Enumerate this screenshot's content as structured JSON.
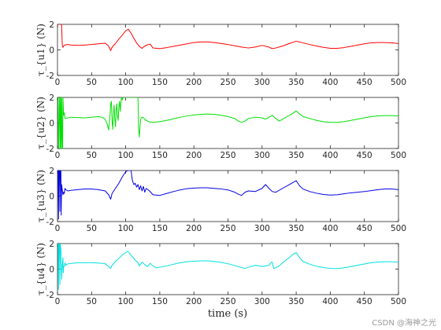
{
  "watermark": "CSDN @海神之光",
  "chart_data": [
    {
      "type": "line",
      "ylabel": "τ_{u1} (N)",
      "xlabel": "",
      "xlim": [
        0,
        500
      ],
      "ylim": [
        -2,
        2
      ],
      "xticks": [
        0,
        50,
        100,
        150,
        200,
        250,
        300,
        350,
        400,
        450,
        500
      ],
      "yticks": [
        -2,
        0,
        2
      ],
      "color": "#ff0000",
      "series": [
        {
          "x": [
            0,
            1,
            2,
            3,
            4,
            5,
            6,
            7,
            8,
            9,
            10,
            12,
            15,
            20,
            30,
            40,
            50,
            60,
            70,
            75,
            78,
            80,
            85,
            90,
            95,
            100,
            104,
            108,
            112,
            116,
            120,
            124,
            128,
            132,
            136,
            140,
            150,
            160,
            170,
            180,
            190,
            200,
            210,
            220,
            230,
            240,
            250,
            260,
            270,
            280,
            290,
            300,
            310,
            315,
            320,
            330,
            340,
            350,
            360,
            370,
            380,
            390,
            400,
            410,
            420,
            430,
            440,
            450,
            460,
            470,
            480,
            490,
            500
          ],
          "y": [
            2,
            2,
            2,
            2,
            2,
            2,
            2,
            0.4,
            0.2,
            0.3,
            0.35,
            0.4,
            0.42,
            0.38,
            0.35,
            0.38,
            0.42,
            0.48,
            0.52,
            0.3,
            -0.05,
            0.2,
            0.5,
            0.85,
            1.15,
            1.5,
            1.62,
            1.3,
            0.9,
            0.55,
            0.28,
            0.12,
            0.3,
            0.4,
            0.45,
            0.15,
            0.1,
            0.18,
            0.28,
            0.38,
            0.48,
            0.58,
            0.62,
            0.62,
            0.58,
            0.5,
            0.42,
            0.32,
            0.22,
            0.15,
            0.22,
            0.35,
            0.22,
            0.1,
            0.15,
            0.3,
            0.5,
            0.68,
            0.55,
            0.42,
            0.3,
            0.2,
            0.12,
            0.12,
            0.18,
            0.28,
            0.38,
            0.48,
            0.55,
            0.58,
            0.58,
            0.55,
            0.5
          ]
        }
      ]
    },
    {
      "type": "line",
      "ylabel": "τ_{u2} (N)",
      "xlabel": "",
      "xlim": [
        0,
        500
      ],
      "ylim": [
        -2,
        2
      ],
      "xticks": [
        0,
        50,
        100,
        150,
        200,
        250,
        300,
        350,
        400,
        450,
        500
      ],
      "yticks": [
        -2,
        0,
        2
      ],
      "color": "#00e000",
      "series": [
        {
          "x": [
            0,
            1,
            1.5,
            2,
            3,
            3.5,
            4,
            5,
            5.5,
            6,
            7,
            7.5,
            8,
            9,
            10,
            11,
            12,
            15,
            20,
            30,
            40,
            50,
            60,
            65,
            70,
            73,
            75,
            77,
            78,
            79,
            80,
            81,
            82,
            83,
            84,
            85,
            86,
            87,
            88,
            89,
            90,
            91,
            92,
            93,
            94,
            95,
            96,
            97,
            98,
            100,
            105,
            110,
            115,
            118,
            119,
            120,
            121,
            122,
            124,
            126,
            130,
            135,
            140,
            150,
            160,
            170,
            180,
            190,
            200,
            210,
            220,
            230,
            240,
            250,
            260,
            265,
            270,
            275,
            280,
            290,
            300,
            305,
            310,
            315,
            320,
            325,
            330,
            340,
            345,
            350,
            355,
            360,
            370,
            380,
            390,
            400,
            410,
            420,
            430,
            440,
            450,
            460,
            470,
            480,
            490,
            500
          ],
          "y": [
            2,
            2,
            -2,
            -2,
            2,
            2,
            -2,
            2,
            -2,
            2,
            -2,
            -2,
            2,
            0.6,
            0.8,
            0.4,
            0.35,
            0.4,
            0.45,
            0.42,
            0.4,
            0.45,
            0.5,
            0.45,
            0.3,
            -0.1,
            -0.55,
            0.6,
            1.5,
            1.7,
            0.2,
            -0.5,
            0.8,
            1.4,
            0.4,
            -0.3,
            1.0,
            1.5,
            0.5,
            0.2,
            1.3,
            1.7,
            0.9,
            1.6,
            2,
            1.8,
            2,
            2,
            2,
            2,
            2,
            2,
            2,
            2,
            -0.5,
            -1.1,
            -0.3,
            0.3,
            0.45,
            0.4,
            0.2,
            0.08,
            0.05,
            0.1,
            0.2,
            0.32,
            0.45,
            0.55,
            0.62,
            0.68,
            0.7,
            0.68,
            0.6,
            0.5,
            0.35,
            0.15,
            0.05,
            0.15,
            0.35,
            0.45,
            0.4,
            0.3,
            0.45,
            0.6,
            0.35,
            0.15,
            0.3,
            0.6,
            0.75,
            0.95,
            0.7,
            0.5,
            0.35,
            0.2,
            0.1,
            0.05,
            0.05,
            0.1,
            0.2,
            0.3,
            0.4,
            0.5,
            0.55,
            0.58,
            0.58,
            0.55
          ]
        }
      ]
    },
    {
      "type": "line",
      "ylabel": "τ_{u3} (N)",
      "xlabel": "",
      "xlim": [
        0,
        500
      ],
      "ylim": [
        -2,
        2
      ],
      "xticks": [
        0,
        50,
        100,
        150,
        200,
        250,
        300,
        350,
        400,
        450,
        500
      ],
      "yticks": [
        -2,
        0,
        2
      ],
      "color": "#0000e0",
      "series": [
        {
          "x": [
            0,
            1,
            1.5,
            2,
            3,
            3.5,
            4,
            5,
            5.5,
            6,
            7,
            8,
            9,
            10,
            11,
            12,
            15,
            20,
            30,
            40,
            50,
            60,
            70,
            75,
            78,
            80,
            85,
            90,
            95,
            100,
            103,
            106,
            108,
            109,
            110,
            112,
            114,
            116,
            118,
            120,
            122,
            124,
            126,
            128,
            130,
            135,
            140,
            150,
            160,
            170,
            180,
            190,
            200,
            210,
            220,
            230,
            240,
            250,
            260,
            265,
            270,
            275,
            280,
            290,
            300,
            305,
            310,
            315,
            320,
            330,
            340,
            345,
            350,
            355,
            360,
            370,
            380,
            390,
            400,
            410,
            420,
            430,
            440,
            450,
            460,
            470,
            480,
            490,
            500
          ],
          "y": [
            2,
            2,
            -1.8,
            2,
            2,
            -1.2,
            2,
            2,
            -1.5,
            0.9,
            0.5,
            0.1,
            0.3,
            0.2,
            0.6,
            0.5,
            0.4,
            0.45,
            0.5,
            0.55,
            0.55,
            0.5,
            0.4,
            0.1,
            -0.25,
            0.2,
            0.6,
            1.0,
            1.5,
            1.9,
            2,
            2,
            2,
            1.5,
            1.2,
            0.9,
            1.0,
            0.7,
            0.9,
            0.5,
            0.8,
            0.4,
            0.75,
            0.3,
            0.6,
            0.4,
            0.1,
            0.05,
            0.2,
            0.35,
            0.48,
            0.58,
            0.62,
            0.65,
            0.65,
            0.6,
            0.55,
            0.48,
            0.3,
            0.15,
            0.05,
            0.3,
            0.4,
            0.35,
            0.6,
            0.9,
            0.6,
            0.35,
            0.3,
            0.6,
            0.9,
            1.05,
            1.2,
            0.8,
            0.55,
            0.35,
            0.22,
            0.12,
            0.08,
            0.1,
            0.18,
            0.25,
            0.3,
            0.35,
            0.42,
            0.5,
            0.55,
            0.55,
            0.5
          ]
        }
      ]
    },
    {
      "type": "line",
      "ylabel": "τ_{u4} (N)",
      "xlabel": "time (s)",
      "xlim": [
        0,
        500
      ],
      "ylim": [
        -2,
        2
      ],
      "xticks": [
        0,
        50,
        100,
        150,
        200,
        250,
        300,
        350,
        400,
        450,
        500
      ],
      "yticks": [
        -2,
        0,
        2
      ],
      "color": "#00e0e0",
      "series": [
        {
          "x": [
            0,
            1,
            1.5,
            2,
            3,
            3.5,
            4,
            5,
            6,
            7,
            8,
            8.5,
            9,
            10,
            11,
            12,
            15,
            20,
            30,
            40,
            50,
            60,
            70,
            75,
            78,
            80,
            85,
            90,
            95,
            100,
            103,
            106,
            110,
            114,
            118,
            120,
            124,
            128,
            132,
            136,
            140,
            145,
            150,
            160,
            170,
            180,
            190,
            200,
            210,
            220,
            230,
            240,
            250,
            260,
            270,
            275,
            280,
            290,
            300,
            310,
            313,
            315,
            317,
            320,
            325,
            330,
            340,
            345,
            350,
            355,
            360,
            370,
            380,
            390,
            400,
            410,
            420,
            430,
            440,
            450,
            460,
            470,
            480,
            490,
            500
          ],
          "y": [
            2,
            2,
            -1.6,
            2,
            2,
            -1.2,
            2,
            1.5,
            -0.8,
            0.3,
            0.9,
            -0.3,
            0.2,
            0.2,
            0.5,
            0.3,
            0.4,
            0.45,
            0.5,
            0.5,
            0.5,
            0.48,
            0.42,
            0.2,
            0.05,
            0.3,
            0.6,
            0.85,
            1.1,
            1.3,
            1.4,
            1.2,
            0.95,
            0.7,
            0.5,
            0.25,
            0.55,
            0.35,
            0.2,
            0.45,
            0.25,
            0.1,
            0.15,
            0.25,
            0.38,
            0.5,
            0.58,
            0.62,
            0.65,
            0.65,
            0.6,
            0.52,
            0.42,
            0.28,
            0.12,
            0.05,
            0.15,
            0.3,
            0.2,
            0.3,
            0.5,
            0.55,
            0.05,
            0.1,
            0.25,
            0.5,
            0.9,
            1.15,
            1.3,
            0.9,
            0.6,
            0.38,
            0.22,
            0.12,
            0.05,
            0.05,
            0.1,
            0.2,
            0.3,
            0.4,
            0.5,
            0.55,
            0.58,
            0.58,
            0.55
          ]
        }
      ]
    }
  ]
}
